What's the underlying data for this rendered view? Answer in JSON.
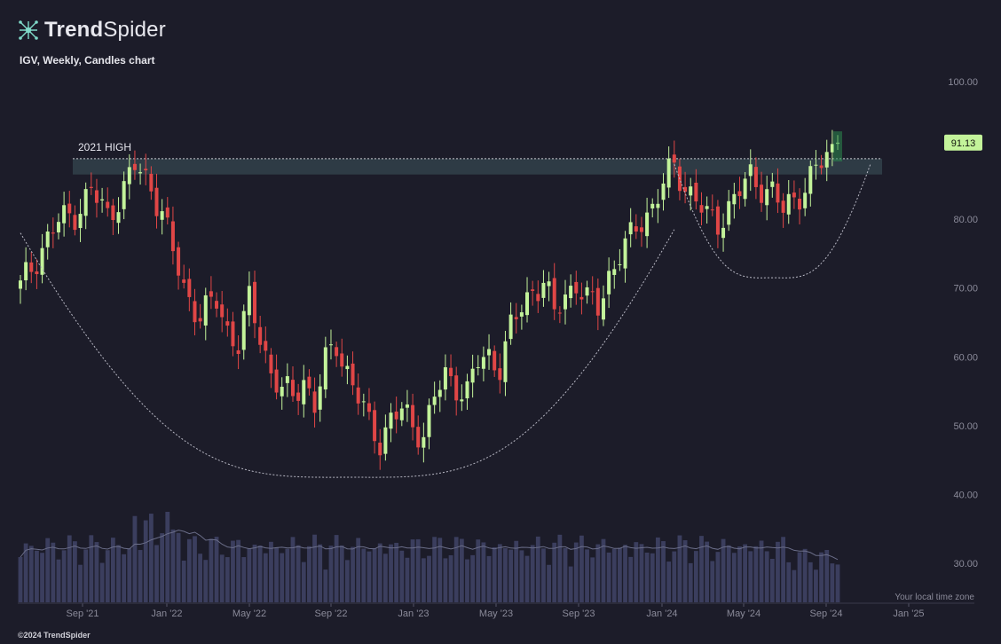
{
  "header": {
    "brand_bold": "Trend",
    "brand_light": "Spider",
    "subtitle": "IGV, Weekly, Candles chart"
  },
  "footer": {
    "copyright": "©2024 TrendSpider"
  },
  "colors": {
    "up": "#c3f39a",
    "down": "#e04646",
    "volume": "#3b3e5e",
    "background": "#1c1c29",
    "resistance_band": "#2f3d47",
    "price_tag": "#c3f39a"
  },
  "chart_data": {
    "type": "candlestick",
    "symbol": "IGV",
    "interval": "Weekly",
    "y_axis": {
      "ticks": [
        "100.00",
        "80.00",
        "70.00",
        "60.00",
        "50.00",
        "40.00",
        "30.00"
      ],
      "range": [
        27,
        100
      ]
    },
    "x_axis": {
      "ticks": [
        "Sep '21",
        "Jan '22",
        "May '22",
        "Sep '22",
        "Jan '23",
        "May '23",
        "Sep '23",
        "Jan '24",
        "May '24",
        "Sep '24",
        "Jan '25"
      ]
    },
    "time_zone_label": "Your local time zone",
    "last_price": "91.13",
    "annotations": [
      {
        "label": "2021 HIGH",
        "type": "resistance_zone",
        "y_from": 86.5,
        "y_to": 88.8
      }
    ],
    "cup_and_handle": {
      "cup": {
        "from": [
          0,
          78
        ],
        "bottom": [
          61,
          42.5
        ],
        "to": [
          120,
          78.5
        ]
      },
      "handle": {
        "from": [
          120,
          88
        ],
        "bottom": [
          138,
          71.5
        ],
        "to": [
          156,
          88
        ]
      }
    },
    "close_anchors": [
      [
        0,
        70
      ],
      [
        4,
        76
      ],
      [
        7,
        79.5
      ],
      [
        10,
        81
      ],
      [
        13,
        84
      ],
      [
        16,
        80.5
      ],
      [
        19,
        84.5
      ],
      [
        21,
        87.5
      ],
      [
        24,
        85
      ],
      [
        26,
        81
      ],
      [
        28,
        75
      ],
      [
        30,
        70
      ],
      [
        33,
        66
      ],
      [
        36,
        68
      ],
      [
        38,
        64
      ],
      [
        40,
        62
      ],
      [
        42,
        68
      ],
      [
        44,
        63
      ],
      [
        46,
        58
      ],
      [
        48,
        55
      ],
      [
        50,
        54
      ],
      [
        52,
        57
      ],
      [
        54,
        53
      ],
      [
        56,
        59
      ],
      [
        58,
        62
      ],
      [
        60,
        58
      ],
      [
        62,
        54
      ],
      [
        64,
        50
      ],
      [
        66,
        48
      ],
      [
        68,
        51
      ],
      [
        70,
        52
      ],
      [
        72,
        50
      ],
      [
        74,
        49
      ],
      [
        76,
        54
      ],
      [
        78,
        57
      ],
      [
        80,
        56
      ],
      [
        82,
        55
      ],
      [
        84,
        59
      ],
      [
        86,
        60
      ],
      [
        88,
        59
      ],
      [
        90,
        64
      ],
      [
        92,
        67
      ],
      [
        94,
        70
      ],
      [
        96,
        71
      ],
      [
        98,
        66
      ],
      [
        100,
        69
      ],
      [
        102,
        71
      ],
      [
        104,
        68
      ],
      [
        106,
        67
      ],
      [
        108,
        72
      ],
      [
        110,
        75
      ],
      [
        112,
        77
      ],
      [
        114,
        80
      ],
      [
        116,
        82
      ],
      [
        118,
        85
      ],
      [
        120,
        87.5
      ],
      [
        122,
        85
      ],
      [
        124,
        83
      ],
      [
        126,
        80
      ],
      [
        128,
        79.5
      ],
      [
        130,
        82
      ],
      [
        132,
        84
      ],
      [
        134,
        86
      ],
      [
        136,
        85
      ],
      [
        138,
        84
      ],
      [
        140,
        81
      ],
      [
        142,
        83
      ],
      [
        144,
        85
      ],
      [
        146,
        87
      ],
      [
        148,
        89
      ],
      [
        150,
        91.13
      ]
    ],
    "volume_scale_note": "volume bars relative, average line overlay"
  }
}
